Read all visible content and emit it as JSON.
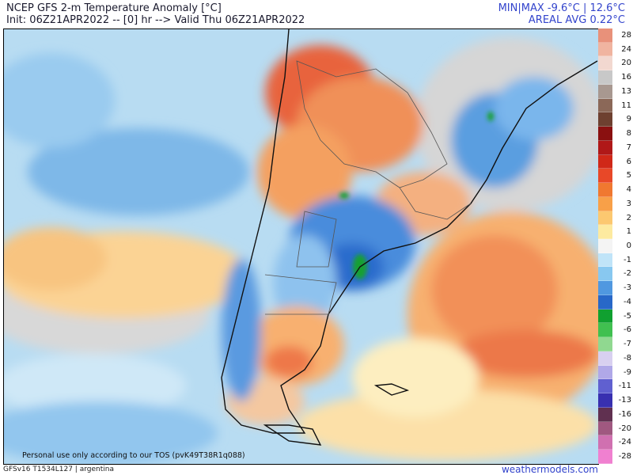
{
  "header": {
    "title": "NCEP GFS 2-m Temperature Anomaly [°C]",
    "init_line": "Init: 06Z21APR2022 -- [0] hr --> Valid Thu 06Z21APR2022",
    "minmax": "MIN|MAX -9.6°C | 12.6°C",
    "areal_avg": "AREAL AVG 0.22°C"
  },
  "map": {
    "tos_text": "Personal use only according to our TOS (pvK49T38R1q088)"
  },
  "colorbar": {
    "labels": [
      "28",
      "24",
      "20",
      "16",
      "13",
      "11",
      "9",
      "8",
      "7",
      "6",
      "5",
      "4",
      "3",
      "2",
      "1",
      "0",
      "-1",
      "-2",
      "-3",
      "-4",
      "-5",
      "-6",
      "-7",
      "-8",
      "-9",
      "-11",
      "-13",
      "-16",
      "-20",
      "-24",
      "-28"
    ],
    "colors": [
      "#e8917a",
      "#f0b4a0",
      "#f2d8d0",
      "#c8c8c8",
      "#a89890",
      "#8b6858",
      "#6e4030",
      "#8a1010",
      "#b01818",
      "#d02818",
      "#e84828",
      "#f07830",
      "#f8a048",
      "#fcc870",
      "#fdeaa0",
      "#f4f4f4",
      "#c0e4f8",
      "#88c8f0",
      "#5098e0",
      "#2868c8",
      "#10a030",
      "#40c050",
      "#90d890",
      "#d8d0f0",
      "#b0a8e8",
      "#6060d0",
      "#3830b0",
      "#603050",
      "#a05880",
      "#d070b0",
      "#f080d0"
    ]
  },
  "footer": {
    "left": "GFSv16 T1534L127 | argentina",
    "right": "weathermodels.com"
  }
}
